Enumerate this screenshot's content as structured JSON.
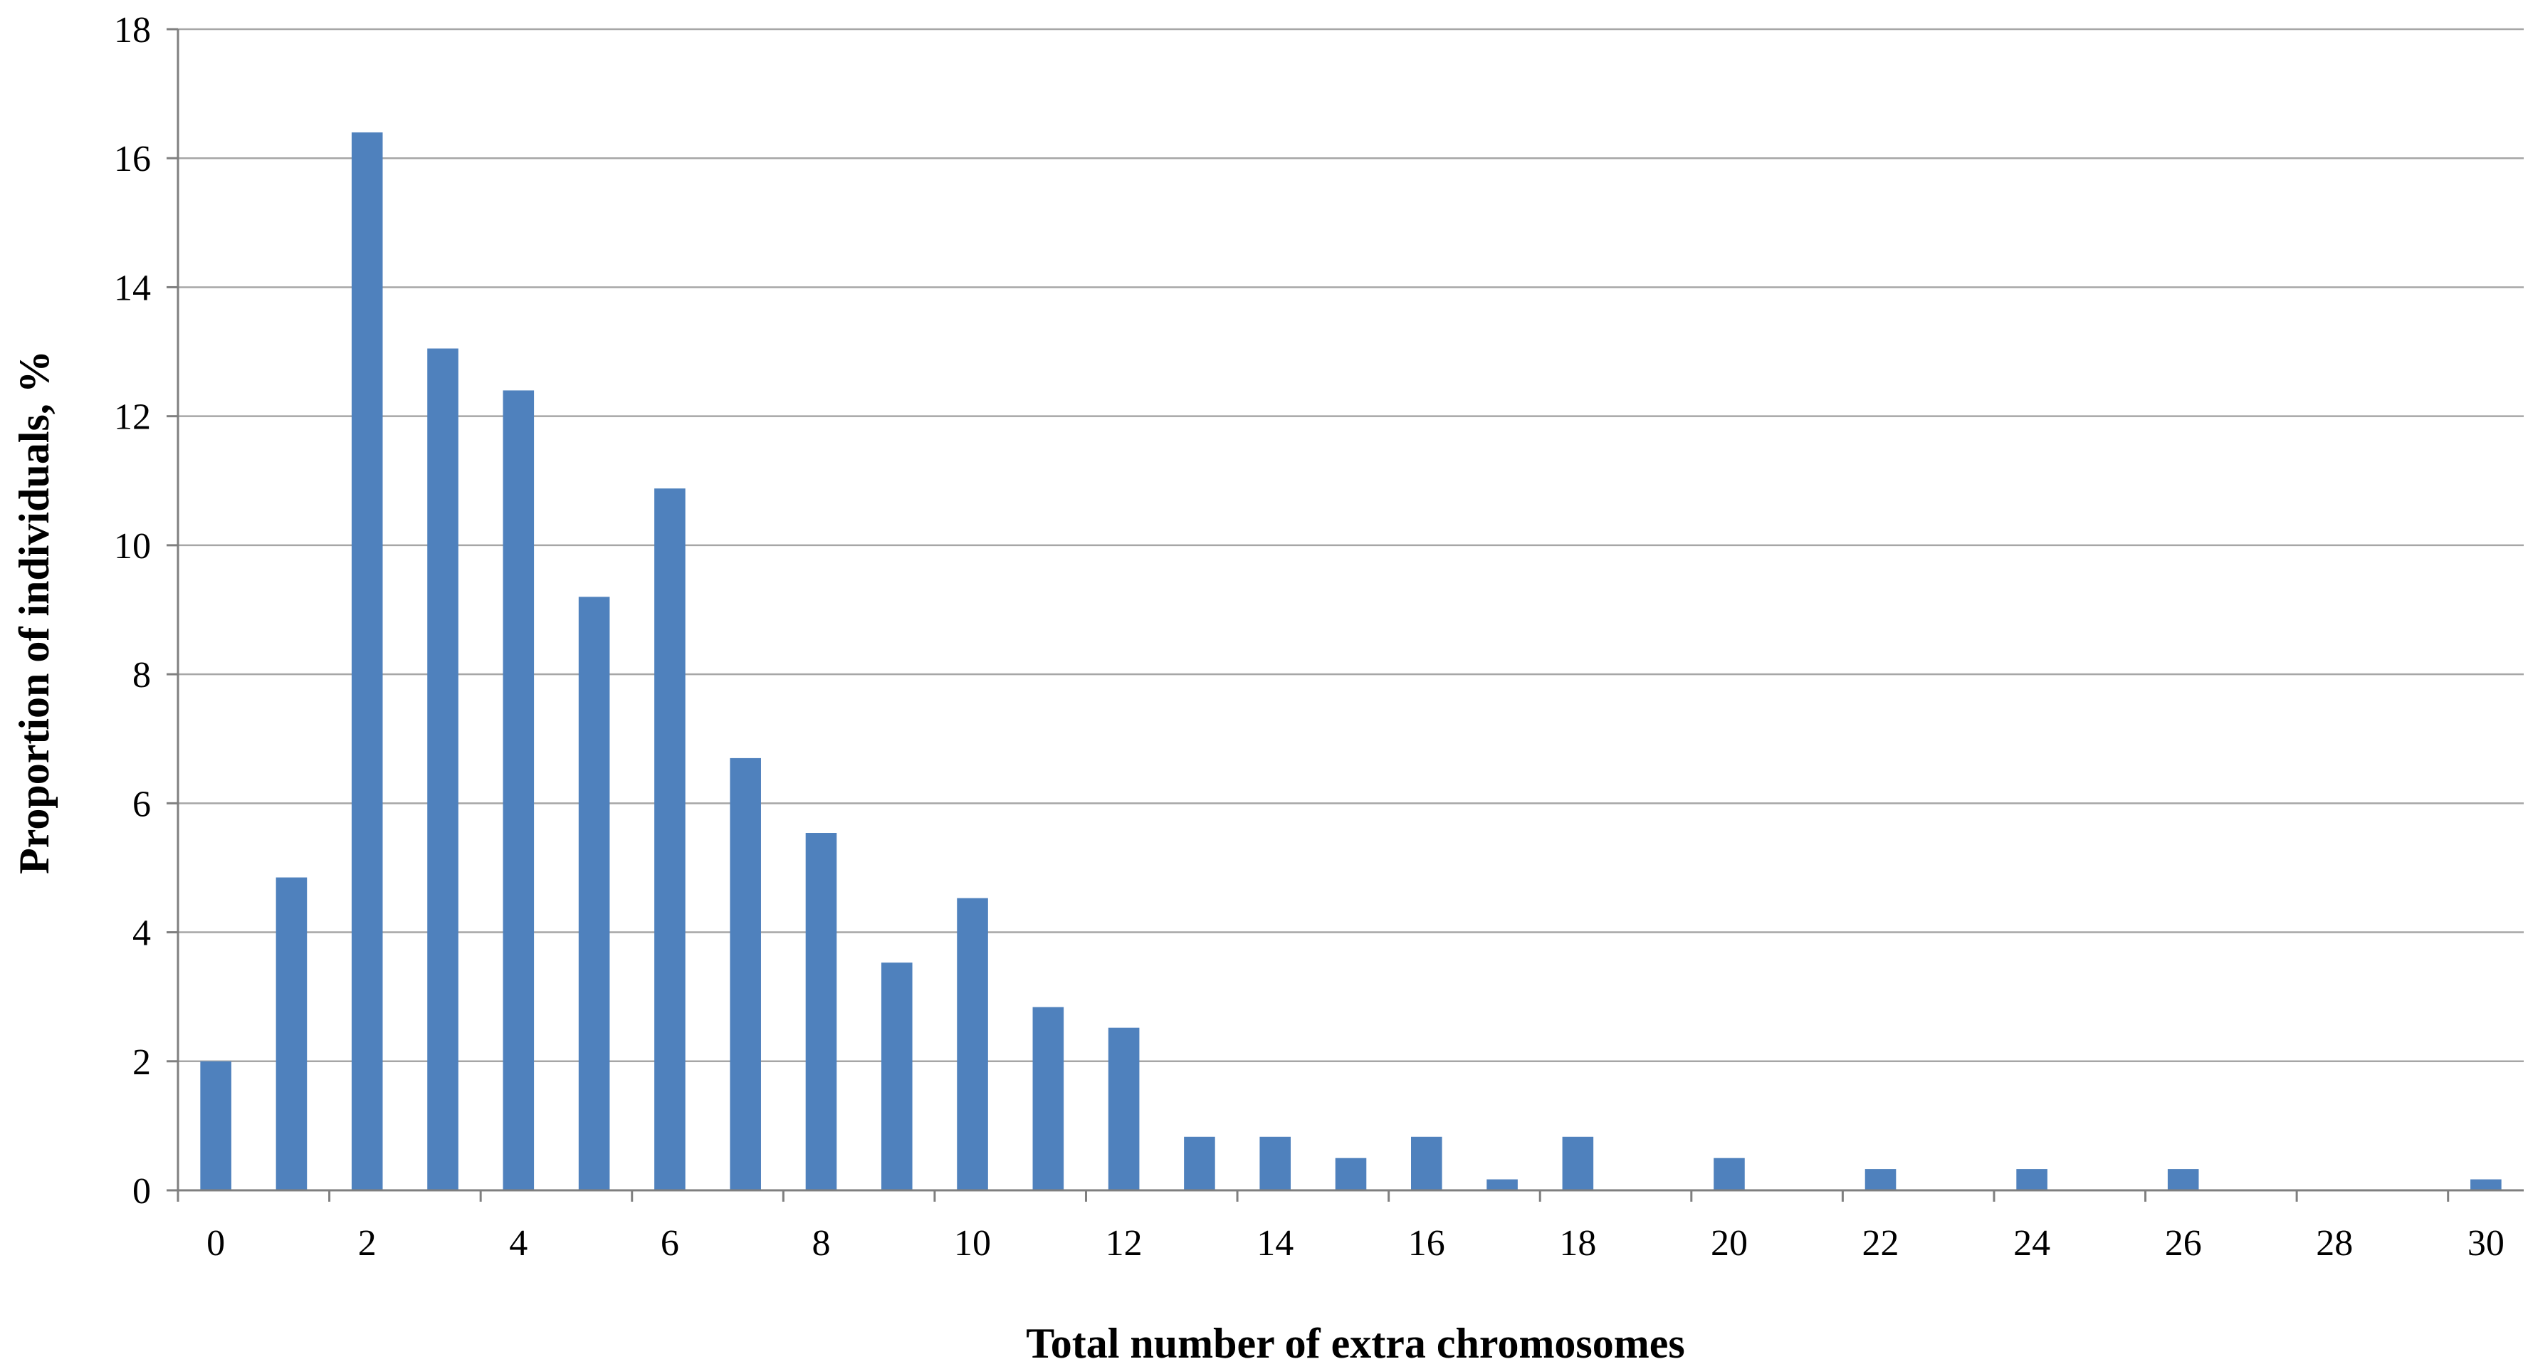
{
  "chart_data": {
    "type": "bar",
    "xlabel": "Total number of extra chromosomes",
    "ylabel": "Proportion  of individuals, %",
    "ylim": [
      0,
      18
    ],
    "xlim": [
      0,
      30
    ],
    "yticks": [
      0,
      2,
      4,
      6,
      8,
      10,
      12,
      14,
      16,
      18
    ],
    "xtick_labels": [
      "0",
      "2",
      "4",
      "6",
      "8",
      "10",
      "12",
      "14",
      "16",
      "18",
      "20",
      "22",
      "24",
      "26",
      "28",
      "30"
    ],
    "grid": true,
    "legend": "none",
    "bar_color": "#4f81bd",
    "grid_color": "#a6a6a6",
    "axis_color": "#7f7f7f",
    "x": [
      0,
      1,
      2,
      3,
      4,
      5,
      6,
      7,
      8,
      9,
      10,
      11,
      12,
      13,
      14,
      15,
      16,
      17,
      18,
      19,
      20,
      21,
      22,
      23,
      24,
      25,
      26,
      27,
      28,
      29,
      30
    ],
    "values": [
      2.0,
      4.85,
      16.4,
      13.05,
      12.4,
      9.2,
      10.88,
      6.7,
      5.54,
      3.53,
      4.53,
      2.84,
      2.52,
      0.83,
      0.83,
      0.5,
      0.83,
      0.17,
      0.83,
      0,
      0.5,
      0,
      0.33,
      0,
      0.33,
      0,
      0.33,
      0,
      0,
      0,
      0.17
    ]
  }
}
